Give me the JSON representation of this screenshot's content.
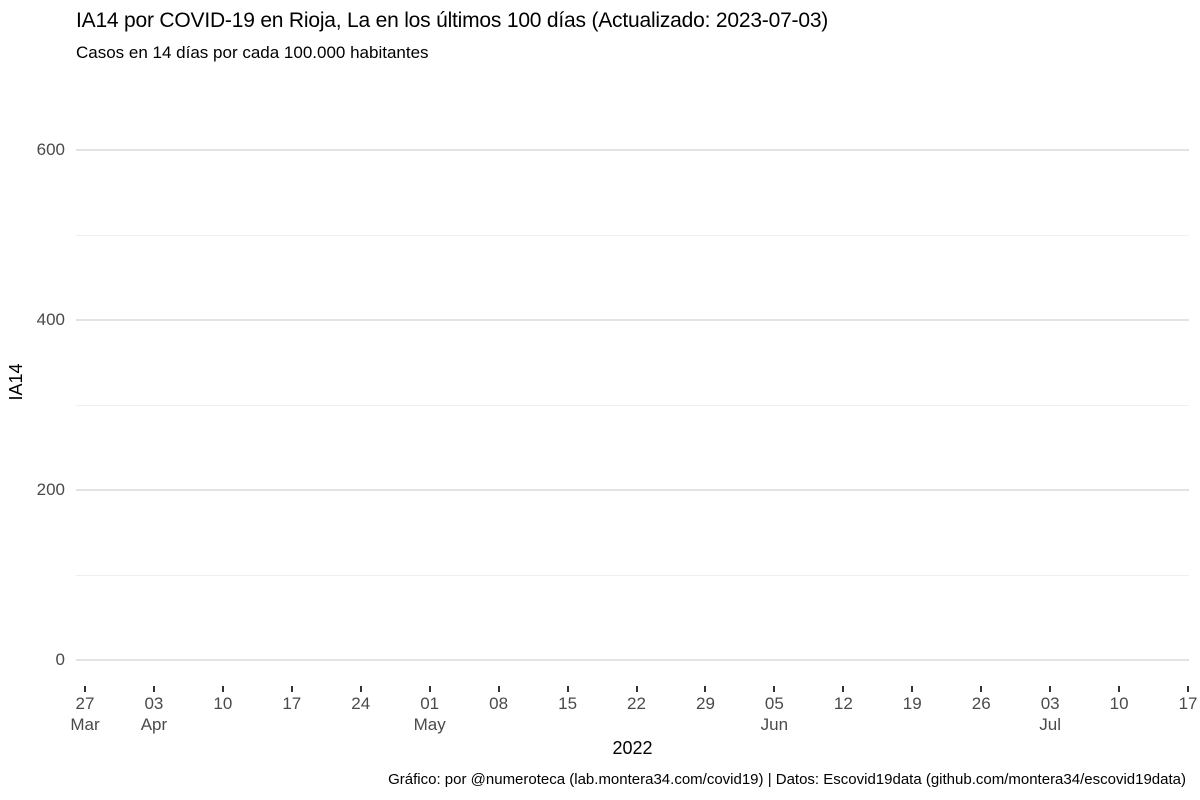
{
  "chart_data": {
    "type": "line",
    "title": "IA14 por COVID-19 en Rioja, La en los últimos 100 días (Actualizado: 2023-07-03)",
    "subtitle": "Casos en 14 días por cada 100.000 habitantes",
    "xlabel": "2022",
    "ylabel": "IA14",
    "ylim": [
      0,
      600
    ],
    "y_major_ticks": [
      0,
      200,
      400,
      600
    ],
    "y_minor_gridlines": [
      100,
      300,
      500
    ],
    "x_ticks": [
      {
        "day": "27",
        "month": "Mar"
      },
      {
        "day": "03",
        "month": "Apr"
      },
      {
        "day": "10",
        "month": ""
      },
      {
        "day": "17",
        "month": ""
      },
      {
        "day": "24",
        "month": ""
      },
      {
        "day": "01",
        "month": "May"
      },
      {
        "day": "08",
        "month": ""
      },
      {
        "day": "15",
        "month": ""
      },
      {
        "day": "22",
        "month": ""
      },
      {
        "day": "29",
        "month": ""
      },
      {
        "day": "05",
        "month": "Jun"
      },
      {
        "day": "12",
        "month": ""
      },
      {
        "day": "19",
        "month": ""
      },
      {
        "day": "26",
        "month": ""
      },
      {
        "day": "03",
        "month": "Jul"
      },
      {
        "day": "10",
        "month": ""
      },
      {
        "day": "17",
        "month": ""
      }
    ],
    "grid": "horizontal-only",
    "legend": "none",
    "series": [
      {
        "name": "IA14",
        "values": []
      }
    ],
    "caption": "Gráfico: por @numeroteca (lab.montera34.com/covid19) | Datos: Escovid19data (github.com/montera34/escovid19data)"
  },
  "colors": {
    "background": "#ffffff",
    "title_text": "#000000",
    "axis_text": "#4a4a4a",
    "axis_title_text": "#000000",
    "grid_major": "#e3e3e3",
    "grid_minor": "#efefef",
    "tick_mark": "#333333"
  }
}
